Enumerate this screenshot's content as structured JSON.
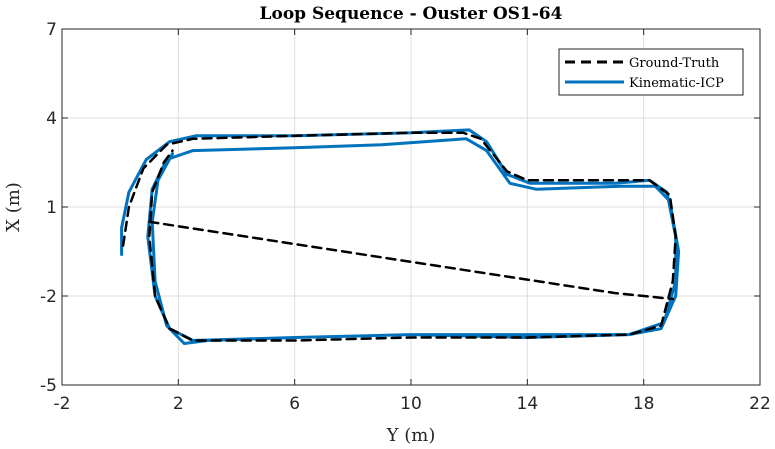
{
  "chart_data": {
    "type": "line",
    "title": "Loop Sequence - Ouster OS1-64",
    "xlabel": "Y (m)",
    "ylabel": "X (m)",
    "xlim": [
      -2,
      22
    ],
    "ylim": [
      -5,
      7
    ],
    "xticks": [
      -2,
      2,
      6,
      10,
      14,
      18,
      22
    ],
    "yticks": [
      -5,
      -2,
      1,
      4,
      7
    ],
    "grid": true,
    "legend_position": "top-right",
    "colors": {
      "ground_truth": "#000000",
      "kinematic_icp": "#0072BD"
    },
    "series": [
      {
        "name": "Ground-Truth",
        "style": "dashed",
        "color": "#000000",
        "segments": [
          [
            [
              1.0,
              0.5
            ],
            [
              3.0,
              0.2
            ],
            [
              5.0,
              -0.1
            ],
            [
              7.0,
              -0.4
            ],
            [
              9.0,
              -0.7
            ],
            [
              11.0,
              -1.0
            ],
            [
              13.0,
              -1.3
            ],
            [
              15.0,
              -1.6
            ],
            [
              17.0,
              -1.9
            ],
            [
              19.0,
              -2.1
            ]
          ],
          [
            [
              0.1,
              -0.3
            ],
            [
              0.3,
              1.0
            ],
            [
              0.8,
              2.3
            ],
            [
              1.6,
              3.1
            ],
            [
              2.5,
              3.3
            ],
            [
              6.0,
              3.4
            ],
            [
              10.0,
              3.5
            ],
            [
              11.8,
              3.5
            ],
            [
              12.4,
              3.3
            ],
            [
              13.3,
              2.2
            ],
            [
              14.0,
              1.9
            ],
            [
              17.0,
              1.9
            ],
            [
              18.2,
              1.9
            ],
            [
              18.9,
              1.4
            ],
            [
              19.1,
              0.0
            ],
            [
              19.0,
              -1.5
            ],
            [
              18.6,
              -3.0
            ],
            [
              17.5,
              -3.3
            ],
            [
              14.0,
              -3.4
            ],
            [
              10.0,
              -3.4
            ],
            [
              6.0,
              -3.5
            ],
            [
              2.5,
              -3.5
            ],
            [
              1.7,
              -3.1
            ],
            [
              1.2,
              -2.0
            ],
            [
              1.0,
              0.0
            ],
            [
              1.1,
              1.5
            ],
            [
              1.5,
              2.5
            ],
            [
              1.8,
              2.9
            ]
          ]
        ]
      },
      {
        "name": "Kinematic-ICP",
        "style": "solid",
        "color": "#0072BD",
        "segments": [
          [
            [
              0.05,
              -0.6
            ],
            [
              0.05,
              0.3
            ],
            [
              0.3,
              1.5
            ],
            [
              0.9,
              2.6
            ],
            [
              1.7,
              3.2
            ],
            [
              2.6,
              3.4
            ],
            [
              6.0,
              3.4
            ],
            [
              10.0,
              3.5
            ],
            [
              12.0,
              3.6
            ],
            [
              12.6,
              3.2
            ],
            [
              13.3,
              2.1
            ],
            [
              14.1,
              1.8
            ],
            [
              17.0,
              1.8
            ],
            [
              18.2,
              1.9
            ],
            [
              18.8,
              1.5
            ],
            [
              19.1,
              0.0
            ],
            [
              19.1,
              -1.5
            ],
            [
              18.7,
              -2.9
            ],
            [
              17.5,
              -3.3
            ],
            [
              14.0,
              -3.3
            ],
            [
              10.0,
              -3.3
            ],
            [
              6.0,
              -3.4
            ],
            [
              2.5,
              -3.5
            ],
            [
              1.7,
              -3.1
            ],
            [
              1.2,
              -2.0
            ],
            [
              0.95,
              0.0
            ],
            [
              1.1,
              1.6
            ],
            [
              1.6,
              2.6
            ],
            [
              2.5,
              2.9
            ],
            [
              6.0,
              3.0
            ],
            [
              9.0,
              3.1
            ],
            [
              11.9,
              3.3
            ],
            [
              12.6,
              2.9
            ],
            [
              13.4,
              1.8
            ],
            [
              14.3,
              1.6
            ],
            [
              17.2,
              1.7
            ],
            [
              18.4,
              1.7
            ],
            [
              18.9,
              1.2
            ],
            [
              19.2,
              -0.5
            ],
            [
              19.1,
              -2.0
            ],
            [
              18.6,
              -3.1
            ],
            [
              17.5,
              -3.3
            ],
            [
              14.0,
              -3.4
            ],
            [
              10.0,
              -3.3
            ],
            [
              6.0,
              -3.4
            ],
            [
              3.0,
              -3.5
            ],
            [
              2.2,
              -3.6
            ],
            [
              1.6,
              -3.0
            ],
            [
              1.2,
              -1.5
            ],
            [
              1.1,
              0.5
            ],
            [
              1.3,
              1.9
            ],
            [
              1.8,
              2.8
            ]
          ]
        ]
      }
    ]
  }
}
